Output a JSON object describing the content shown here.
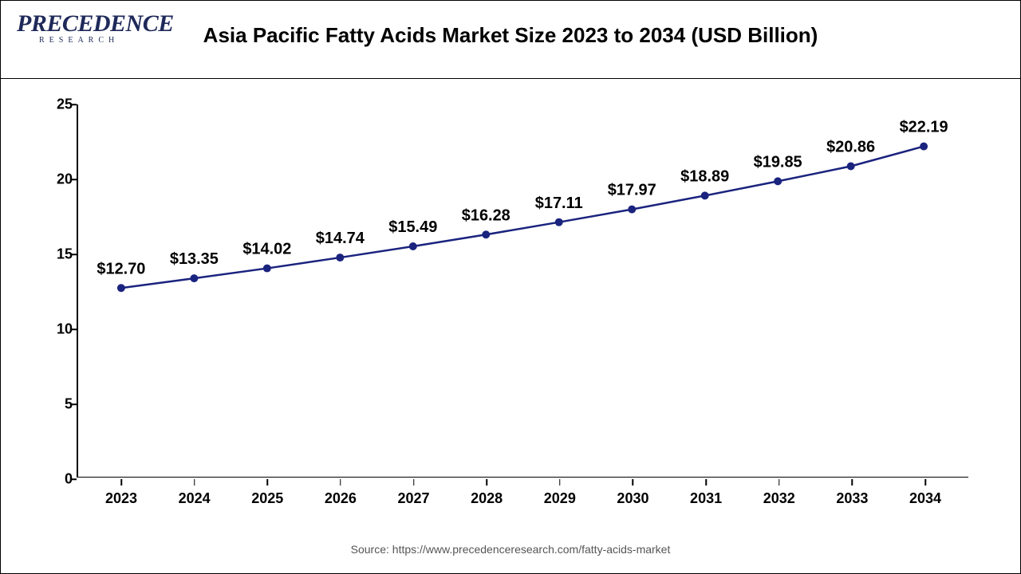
{
  "header": {
    "logo_main": "PRECEDENCE",
    "logo_sub": "RESEARCH",
    "title": "Asia Pacific Fatty Acids Market Size 2023 to 2034 (USD Billion)"
  },
  "chart": {
    "type": "line",
    "categories": [
      "2023",
      "2024",
      "2025",
      "2026",
      "2027",
      "2028",
      "2029",
      "2030",
      "2031",
      "2032",
      "2033",
      "2034"
    ],
    "values": [
      12.7,
      13.35,
      14.02,
      14.74,
      15.49,
      16.28,
      17.11,
      17.97,
      18.89,
      19.85,
      20.86,
      22.19
    ],
    "value_labels": [
      "$12.70",
      "$13.35",
      "$14.02",
      "$14.74",
      "$15.49",
      "$16.28",
      "$17.11",
      "$17.97",
      "$18.89",
      "$19.85",
      "$20.86",
      "$22.19"
    ],
    "ylim": [
      0,
      25
    ],
    "yticks": [
      0,
      5,
      10,
      15,
      20,
      25
    ],
    "line_color": "#1a237e",
    "marker_color": "#1a237e",
    "marker_radius": 5,
    "line_width": 2.5,
    "label_fontsize": 20,
    "label_fontweight": "bold",
    "axis_tick_fontsize": 18,
    "axis_tick_fontweight": "bold",
    "background_color": "#ffffff",
    "text_color": "#000000"
  },
  "source": "Source: https://www.precedenceresearch.com/fatty-acids-market"
}
